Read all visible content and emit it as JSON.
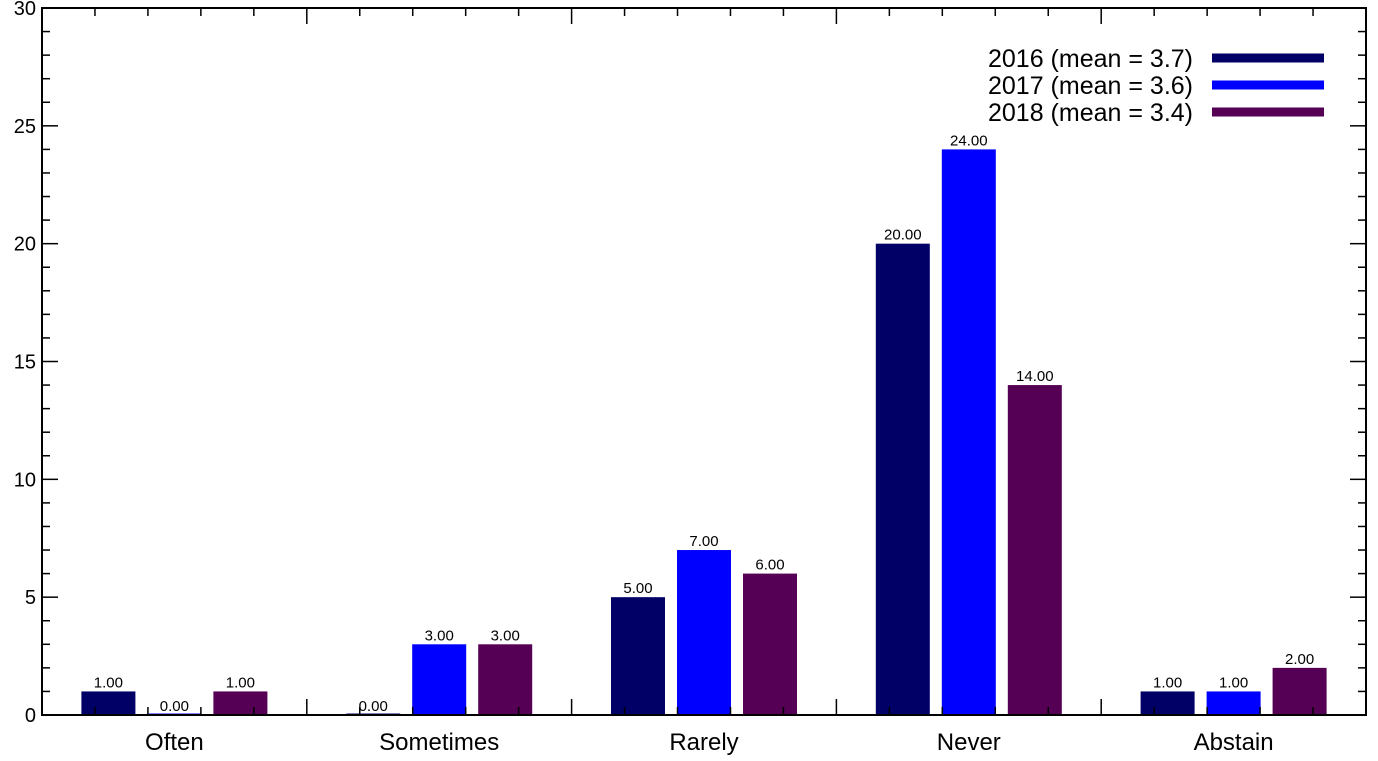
{
  "chart_data": {
    "type": "bar",
    "title": "",
    "xlabel": "",
    "ylabel": "",
    "categories": [
      "Often",
      "Sometimes",
      "Rarely",
      "Never",
      "Abstain"
    ],
    "ylim": [
      0,
      30
    ],
    "yticks": [
      0,
      5,
      10,
      15,
      20,
      25,
      30
    ],
    "legend_position": "top-right",
    "grid": false,
    "value_label_format": "2-decimals",
    "series": [
      {
        "name": "2016 (mean = 3.7)",
        "color": "#000066",
        "values": [
          1,
          0,
          5,
          20,
          1
        ]
      },
      {
        "name": "2017 (mean = 3.6)",
        "color": "#0000ff",
        "values": [
          0,
          3,
          7,
          24,
          1
        ]
      },
      {
        "name": "2018 (mean = 3.4)",
        "color": "#550055",
        "values": [
          1,
          3,
          6,
          14,
          2
        ]
      }
    ]
  }
}
